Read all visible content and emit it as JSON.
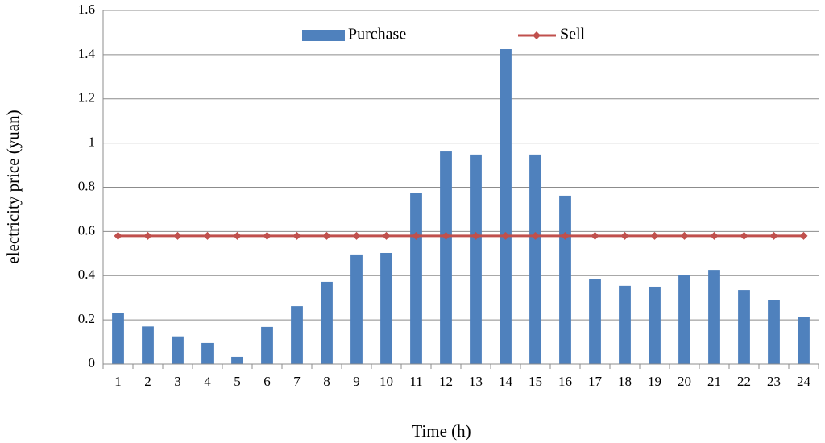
{
  "chart_data": {
    "type": "bar",
    "x_label": "Time (h)",
    "y_label": "electricity price (yuan)",
    "categories": [
      "1",
      "2",
      "3",
      "4",
      "5",
      "6",
      "7",
      "8",
      "9",
      "10",
      "11",
      "12",
      "13",
      "14",
      "15",
      "16",
      "17",
      "18",
      "19",
      "20",
      "21",
      "22",
      "23",
      "24"
    ],
    "series": [
      {
        "name": "Purchase",
        "type": "bar",
        "color": "#4f81bd",
        "values": [
          0.23,
          0.17,
          0.125,
          0.095,
          0.033,
          0.168,
          0.262,
          0.372,
          0.496,
          0.503,
          0.776,
          0.962,
          0.948,
          1.425,
          0.948,
          0.762,
          0.383,
          0.354,
          0.35,
          0.401,
          0.426,
          0.335,
          0.288,
          0.215
        ]
      },
      {
        "name": "Sell",
        "type": "line",
        "color": "#c0504d",
        "values": [
          0.58,
          0.58,
          0.58,
          0.58,
          0.58,
          0.58,
          0.58,
          0.58,
          0.58,
          0.58,
          0.58,
          0.58,
          0.58,
          0.58,
          0.58,
          0.58,
          0.58,
          0.58,
          0.58,
          0.58,
          0.58,
          0.58,
          0.58,
          0.58
        ]
      }
    ],
    "ylim": [
      0,
      1.6
    ],
    "yticks": [
      0,
      0.2,
      0.4,
      0.6,
      0.8,
      1,
      1.2,
      1.4,
      1.6
    ],
    "grid": true,
    "legend": "top"
  }
}
